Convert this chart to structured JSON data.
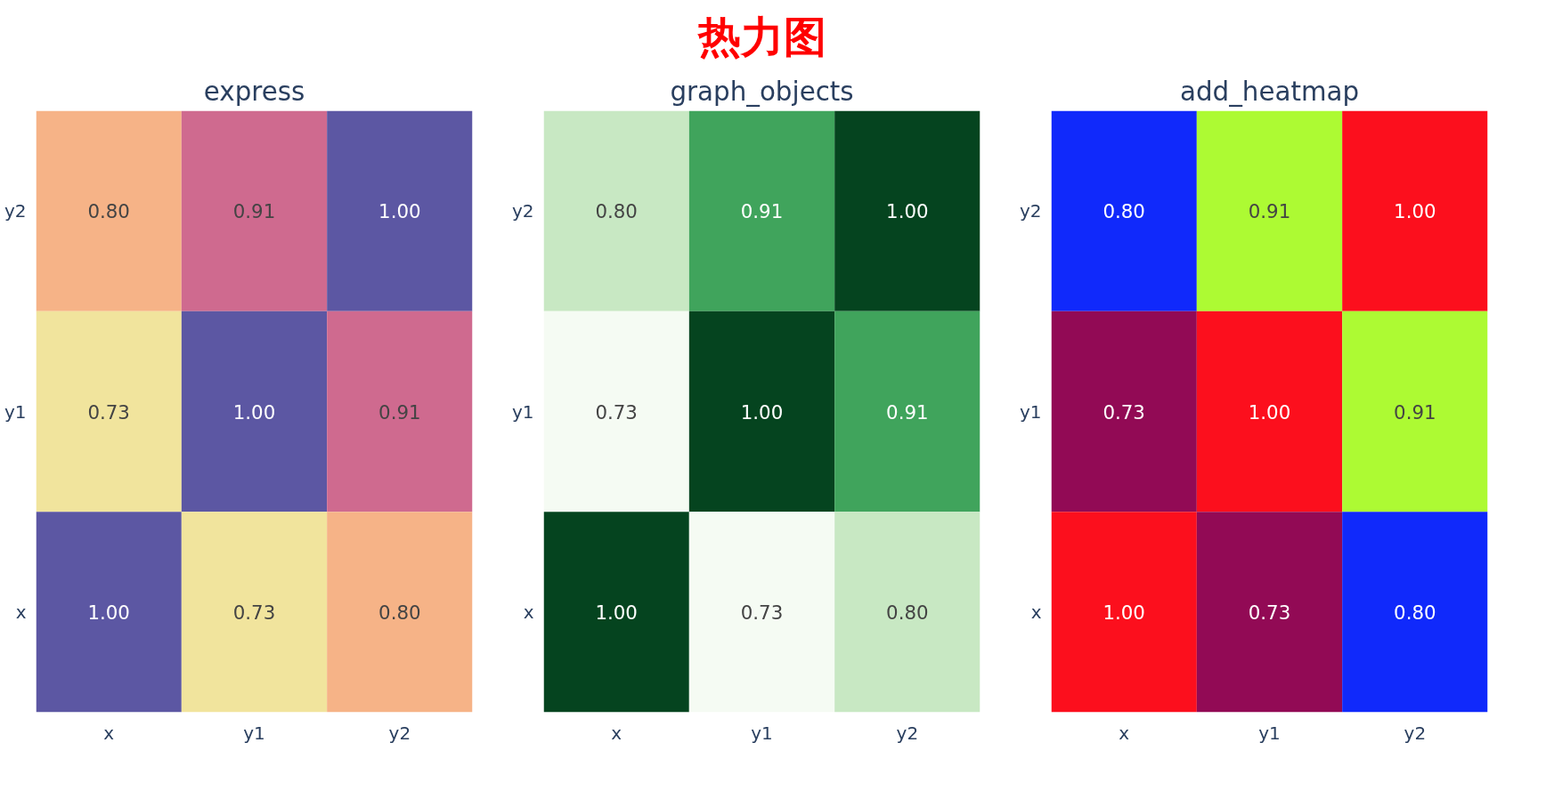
{
  "chart_data": [
    {
      "type": "heatmap",
      "subtitle": "express",
      "categories": [
        "x",
        "y1",
        "y2"
      ],
      "y_categories": [
        "y2",
        "y1",
        "x"
      ],
      "data_labels": true,
      "cells": [
        [
          0.8,
          0.91,
          1.0
        ],
        [
          0.73,
          1.0,
          0.91
        ],
        [
          1.0,
          0.73,
          0.8
        ]
      ],
      "cell_labels": [
        [
          "0.80",
          "0.91",
          "1.00"
        ],
        [
          "0.73",
          "1.00",
          "0.91"
        ],
        [
          "1.00",
          "0.73",
          "0.80"
        ]
      ],
      "colors": [
        [
          "#f6b387",
          "#cf6a8f",
          "#5c57a3"
        ],
        [
          "#f1e49d",
          "#5c57a3",
          "#cf6a8f"
        ],
        [
          "#5c57a3",
          "#f1e49d",
          "#f6b387"
        ]
      ]
    },
    {
      "type": "heatmap",
      "title": "热力图",
      "subtitle": "graph_objects",
      "categories": [
        "x",
        "y1",
        "y2"
      ],
      "y_categories": [
        "y2",
        "y1",
        "x"
      ],
      "data_labels": true,
      "cells": [
        [
          0.8,
          0.91,
          1.0
        ],
        [
          0.73,
          1.0,
          0.91
        ],
        [
          1.0,
          0.73,
          0.8
        ]
      ],
      "cell_labels": [
        [
          "0.80",
          "0.91",
          "1.00"
        ],
        [
          "0.73",
          "1.00",
          "0.91"
        ],
        [
          "1.00",
          "0.73",
          "0.80"
        ]
      ],
      "colors": [
        [
          "#c8e8c3",
          "#40a45c",
          "#05441f"
        ],
        [
          "#f5fbf3",
          "#05441f",
          "#40a45c"
        ],
        [
          "#05441f",
          "#f5fbf3",
          "#c8e8c3"
        ]
      ]
    },
    {
      "type": "heatmap",
      "subtitle": "add_heatmap",
      "categories": [
        "x",
        "y1",
        "y2"
      ],
      "y_categories": [
        "y2",
        "y1",
        "x"
      ],
      "data_labels": true,
      "cells": [
        [
          0.8,
          0.91,
          1.0
        ],
        [
          0.73,
          1.0,
          0.91
        ],
        [
          1.0,
          0.73,
          0.8
        ]
      ],
      "cell_labels": [
        [
          "0.80",
          "0.91",
          "1.00"
        ],
        [
          "0.73",
          "1.00",
          "0.91"
        ],
        [
          "1.00",
          "0.73",
          "0.80"
        ]
      ],
      "colors": [
        [
          "#1029fb",
          "#adfa33",
          "#fc0f1d"
        ],
        [
          "#920a55",
          "#fc0f1d",
          "#adfa33"
        ],
        [
          "#fc0f1d",
          "#920a55",
          "#1029fb"
        ]
      ]
    }
  ]
}
